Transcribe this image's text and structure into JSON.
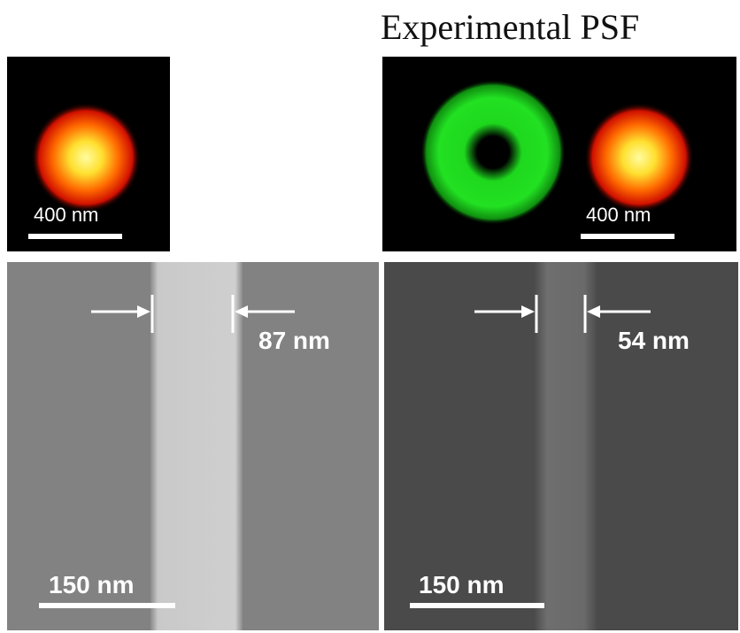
{
  "header": {
    "title": "Experimental PSF"
  },
  "panels": [
    {
      "scale_bar": "400 nm"
    },
    {
      "scale_bar": "400 nm"
    },
    {
      "scale_bar": "150 nm",
      "measurement": "87 nm"
    },
    {
      "scale_bar": "150 nm",
      "measurement": "54 nm"
    }
  ]
}
